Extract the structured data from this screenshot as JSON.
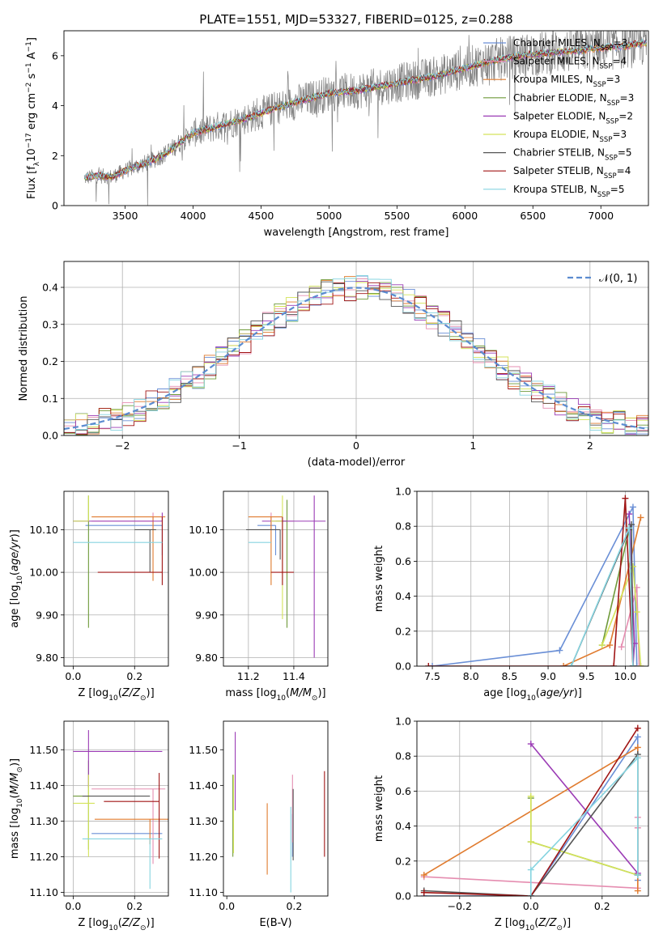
{
  "title": "PLATE=1551, MJD=53327, FIBERID=0125, z=0.288",
  "series_colors": {
    "chabrier_miles": "#6a8fd6",
    "salpeter_miles": "#e58db0",
    "kroupa_miles": "#e07b2e",
    "chabrier_elodie": "#6f9a3a",
    "salpeter_elodie": "#9b3bb5",
    "kroupa_elodie": "#d4e35a",
    "chabrier_stelib": "#555555",
    "salpeter_stelib": "#a01515",
    "kroupa_stelib": "#86d4e0"
  },
  "chart_data": [
    {
      "type": "line",
      "panel": "spectrum",
      "xlabel": "wavelength [Angstrom, rest frame]",
      "ylabel": "Flux [f_λ 10^-17 erg cm^-2 s^-1 A^-1]",
      "xlim": [
        3050,
        7350
      ],
      "ylim": [
        0,
        7
      ],
      "xticks": [
        3500,
        4000,
        4500,
        5000,
        5500,
        6000,
        6500,
        7000
      ],
      "yticks": [
        0,
        2,
        4,
        6
      ],
      "legend_position": "upper-right",
      "legend": [
        {
          "name": "Chabrier MILES, N",
          "sub": "SSP",
          "tail": "=3",
          "color": "#6a8fd6"
        },
        {
          "name": "Salpeter MILES, N",
          "sub": "SSP",
          "tail": "=4",
          "color": "#e58db0"
        },
        {
          "name": "Kroupa MILES, N",
          "sub": "SSP",
          "tail": "=3",
          "color": "#e07b2e"
        },
        {
          "name": "Chabrier ELODIE, N",
          "sub": "SSP",
          "tail": "=3",
          "color": "#6f9a3a"
        },
        {
          "name": "Salpeter ELODIE, N",
          "sub": "SSP",
          "tail": "=2",
          "color": "#9b3bb5"
        },
        {
          "name": "Kroupa ELODIE, N",
          "sub": "SSP",
          "tail": "=3",
          "color": "#d4e35a"
        },
        {
          "name": "Chabrier STELIB, N",
          "sub": "SSP",
          "tail": "=5",
          "color": "#555555"
        },
        {
          "name": "Salpeter STELIB, N",
          "sub": "SSP",
          "tail": "=4",
          "color": "#a01515"
        },
        {
          "name": "Kroupa STELIB, N",
          "sub": "SSP",
          "tail": "=5",
          "color": "#86d4e0"
        }
      ],
      "data_curve": {
        "x": [
          3200,
          3300,
          3400,
          3500,
          3600,
          3700,
          3800,
          3900,
          4000,
          4200,
          4400,
          4600,
          4800,
          5000,
          5200,
          5400,
          5600,
          5800,
          6000,
          6200,
          6400,
          6600,
          6800,
          7000,
          7200,
          7300
        ],
        "y": [
          1.1,
          1.2,
          1.15,
          1.4,
          1.6,
          1.8,
          2.1,
          2.5,
          2.9,
          3.2,
          3.5,
          3.9,
          4.2,
          4.5,
          4.6,
          4.8,
          5.0,
          5.2,
          5.5,
          5.8,
          6.0,
          6.1,
          6.2,
          6.3,
          6.4,
          6.5
        ]
      }
    },
    {
      "type": "line",
      "panel": "residual-histogram",
      "xlabel": "(data-model)/error",
      "ylabel": "Normed distribution",
      "xlim": [
        -2.5,
        2.5
      ],
      "ylim": [
        0,
        0.47
      ],
      "xticks": [
        -2,
        -1,
        0,
        1,
        2
      ],
      "yticks": [
        0.0,
        0.1,
        0.2,
        0.3,
        0.4
      ],
      "grid": true,
      "legend_label": "𝒩(0, 1)",
      "legend_position": "upper-right"
    },
    {
      "type": "scatter",
      "panel": "age-vs-metallicity",
      "xlabel": "Z [log10(Z/Z⊙)]",
      "ylabel": "age  [log10(age/yr)]",
      "xlim": [
        -0.03,
        0.31
      ],
      "ylim": [
        9.78,
        10.19
      ],
      "xticks": [
        0.0,
        0.2
      ],
      "yticks": [
        9.8,
        9.9,
        10.0,
        10.1
      ],
      "grid": true,
      "points": [
        {
          "series": "chabrier_miles",
          "x": 0.29,
          "y": 10.11,
          "xerr": [
            0.25,
            0.0
          ],
          "yerr": [
            0.07,
            0.0
          ]
        },
        {
          "series": "salpeter_miles",
          "x": 0.26,
          "y": 10.12,
          "xerr": [
            0.2,
            0.0
          ],
          "yerr": [
            0.02,
            0.02
          ]
        },
        {
          "series": "kroupa_miles",
          "x": 0.26,
          "y": 10.13,
          "xerr": [
            0.2,
            0.04
          ],
          "yerr": [
            0.15,
            0.0
          ]
        },
        {
          "series": "chabrier_elodie",
          "x": 0.05,
          "y": 10.12,
          "xerr": [
            0.05,
            0.0
          ],
          "yerr": [
            0.25,
            0.06
          ]
        },
        {
          "series": "salpeter_elodie",
          "x": 0.29,
          "y": 10.12,
          "xerr": [
            0.29,
            0.0
          ],
          "yerr": [
            0.0,
            0.02
          ]
        },
        {
          "series": "kroupa_elodie",
          "x": 0.05,
          "y": 10.12,
          "xerr": [
            0.05,
            0.0
          ],
          "yerr": [
            0.0,
            0.06
          ]
        },
        {
          "series": "chabrier_stelib",
          "x": 0.25,
          "y": 10.1,
          "xerr": [
            0.05,
            0.02
          ],
          "yerr": [
            0.1,
            0.0
          ]
        },
        {
          "series": "salpeter_stelib",
          "x": 0.29,
          "y": 10.0,
          "xerr": [
            0.21,
            0.0
          ],
          "yerr": [
            0.03,
            0.13
          ]
        },
        {
          "series": "kroupa_stelib",
          "x": 0.29,
          "y": 10.07,
          "xerr": [
            0.29,
            0.0
          ],
          "yerr": [
            0.0,
            0.0
          ]
        }
      ]
    },
    {
      "type": "scatter",
      "panel": "age-vs-mass",
      "xlabel": "mass [log10(M/M⊙)]",
      "ylabel": "",
      "xlim": [
        11.09,
        11.55
      ],
      "ylim": [
        9.78,
        10.19
      ],
      "xticks": [
        11.2,
        11.4
      ],
      "yticks": [
        9.8,
        9.9,
        10.0,
        10.1
      ],
      "grid": true,
      "points": [
        {
          "series": "chabrier_miles",
          "x": 11.32,
          "y": 10.11,
          "xerr": [
            0.08,
            0.0
          ],
          "yerr": [
            0.07,
            0.0
          ]
        },
        {
          "series": "salpeter_miles",
          "x": 11.3,
          "y": 10.12,
          "xerr": [
            0.0,
            0.1
          ],
          "yerr": [
            0.02,
            0.02
          ]
        },
        {
          "series": "kroupa_miles",
          "x": 11.3,
          "y": 10.13,
          "xerr": [
            0.1,
            0.05
          ],
          "yerr": [
            0.16,
            0.0
          ]
        },
        {
          "series": "chabrier_elodie",
          "x": 11.37,
          "y": 10.12,
          "xerr": [
            0.05,
            0.0
          ],
          "yerr": [
            0.25,
            0.05
          ]
        },
        {
          "series": "salpeter_elodie",
          "x": 11.49,
          "y": 10.12,
          "xerr": [
            0.23,
            0.05
          ],
          "yerr": [
            0.32,
            0.06
          ]
        },
        {
          "series": "kroupa_elodie",
          "x": 11.35,
          "y": 10.12,
          "xerr": [
            0.05,
            0.0
          ],
          "yerr": [
            0.23,
            0.06
          ]
        },
        {
          "series": "chabrier_stelib",
          "x": 11.34,
          "y": 10.1,
          "xerr": [
            0.15,
            0.0
          ],
          "yerr": [
            0.07,
            0.0
          ]
        },
        {
          "series": "salpeter_stelib",
          "x": 11.35,
          "y": 10.0,
          "xerr": [
            0.05,
            0.05
          ],
          "yerr": [
            0.03,
            0.13
          ]
        },
        {
          "series": "kroupa_stelib",
          "x": 11.25,
          "y": 10.07,
          "xerr": [
            0.05,
            0.05
          ],
          "yerr": [
            0.0,
            0.0
          ]
        }
      ]
    },
    {
      "type": "line",
      "panel": "mass-weight-vs-age",
      "xlabel": "age  [log10(age/yr)]",
      "ylabel": "mass weight",
      "xlim": [
        7.3,
        10.3
      ],
      "ylim": [
        0,
        1
      ],
      "xticks": [
        7.5,
        8.0,
        8.5,
        9.0,
        9.5,
        10.0
      ],
      "yticks": [
        0.0,
        0.2,
        0.4,
        0.6,
        0.8,
        1.0
      ],
      "grid": true,
      "series": [
        {
          "name": "chabrier_miles",
          "x": [
            7.5,
            9.15,
            10.1,
            10.15
          ],
          "y": [
            0.0,
            0.09,
            0.91,
            0.0
          ]
        },
        {
          "name": "salpeter_miles",
          "x": [
            9.95,
            10.15,
            10.18,
            10.2
          ],
          "y": [
            0.11,
            0.45,
            0.0,
            0.0
          ]
        },
        {
          "name": "kroupa_miles",
          "x": [
            9.2,
            9.8,
            10.2
          ],
          "y": [
            0.0,
            0.12,
            0.85
          ]
        },
        {
          "name": "chabrier_elodie",
          "x": [
            9.7,
            10.05,
            10.1
          ],
          "y": [
            0.12,
            0.78,
            0.0
          ]
        },
        {
          "name": "salpeter_elodie",
          "x": [
            10.05,
            10.12,
            10.1
          ],
          "y": [
            0.87,
            0.13,
            0.0
          ]
        },
        {
          "name": "kroupa_elodie",
          "x": [
            9.7,
            10.1,
            10.15,
            10.2
          ],
          "y": [
            0.12,
            0.57,
            0.31,
            0.0
          ]
        },
        {
          "name": "chabrier_stelib",
          "x": [
            9.3,
            10.08,
            10.1
          ],
          "y": [
            0.0,
            0.81,
            0.0
          ]
        },
        {
          "name": "salpeter_stelib",
          "x": [
            7.45,
            9.85,
            10.0,
            10.1
          ],
          "y": [
            0.0,
            0.0,
            0.96,
            0.0
          ]
        },
        {
          "name": "kroupa_stelib",
          "x": [
            9.3,
            10.05,
            10.1
          ],
          "y": [
            0.0,
            0.79,
            0.0
          ]
        }
      ]
    },
    {
      "type": "scatter",
      "panel": "mass-vs-metallicity",
      "xlabel": "Z [log10(Z/Z⊙)]",
      "ylabel": "mass [log10(M/M⊙)]",
      "xlim": [
        -0.03,
        0.31
      ],
      "ylim": [
        11.09,
        11.58
      ],
      "xticks": [
        0.0,
        0.2
      ],
      "yticks": [
        11.1,
        11.2,
        11.3,
        11.4,
        11.5
      ],
      "grid": true,
      "points": [
        {
          "series": "chabrier_miles",
          "x": 0.29,
          "y": 11.265,
          "xerr": [
            0.23,
            0.0
          ],
          "yerr": [
            0.0,
            0.0
          ]
        },
        {
          "series": "salpeter_miles",
          "x": 0.26,
          "y": 11.39,
          "xerr": [
            0.2,
            0.04
          ],
          "yerr": [
            0.21,
            0.0
          ]
        },
        {
          "series": "kroupa_miles",
          "x": 0.25,
          "y": 11.305,
          "xerr": [
            0.18,
            0.06
          ],
          "yerr": [
            0.07,
            0.0
          ]
        },
        {
          "series": "chabrier_elodie",
          "x": 0.05,
          "y": 11.37,
          "xerr": [
            0.05,
            0.0
          ],
          "yerr": [
            0.15,
            0.1
          ]
        },
        {
          "series": "salpeter_elodie",
          "x": 0.05,
          "y": 11.495,
          "xerr": [
            0.05,
            0.24
          ],
          "yerr": [
            0.1,
            0.06
          ]
        },
        {
          "series": "kroupa_elodie",
          "x": 0.05,
          "y": 11.35,
          "xerr": [
            0.05,
            0.02
          ],
          "yerr": [
            0.15,
            0.08
          ]
        },
        {
          "series": "chabrier_stelib",
          "x": 0.25,
          "y": 11.37,
          "xerr": [
            0.22,
            0.0
          ],
          "yerr": [
            0.0,
            0.0
          ]
        },
        {
          "series": "salpeter_stelib",
          "x": 0.28,
          "y": 11.355,
          "xerr": [
            0.18,
            0.0
          ],
          "yerr": [
            0.16,
            0.08
          ]
        },
        {
          "series": "kroupa_stelib",
          "x": 0.25,
          "y": 11.25,
          "xerr": [
            0.22,
            0.04
          ],
          "yerr": [
            0.14,
            0.0
          ]
        }
      ]
    },
    {
      "type": "scatter",
      "panel": "mass-vs-extinction",
      "xlabel": "E(B-V)",
      "ylabel": "",
      "xlim": [
        -0.01,
        0.3
      ],
      "ylim": [
        11.09,
        11.58
      ],
      "xticks": [
        0.0,
        0.2
      ],
      "yticks": [
        11.1,
        11.2,
        11.3,
        11.4,
        11.5
      ],
      "points": [
        {
          "series": "chabrier_miles",
          "x": 0.195,
          "y": 11.26,
          "yerr": [
            0.06,
            0.06
          ]
        },
        {
          "series": "salpeter_miles",
          "x": 0.195,
          "y": 11.36,
          "yerr": [
            0.12,
            0.07
          ]
        },
        {
          "series": "kroupa_miles",
          "x": 0.12,
          "y": 11.25,
          "yerr": [
            0.1,
            0.1
          ]
        },
        {
          "series": "chabrier_elodie",
          "x": 0.018,
          "y": 11.35,
          "yerr": [
            0.15,
            0.08
          ]
        },
        {
          "series": "salpeter_elodie",
          "x": 0.025,
          "y": 11.45,
          "yerr": [
            0.12,
            0.1
          ]
        },
        {
          "series": "kroupa_elodie",
          "x": 0.02,
          "y": 11.35,
          "yerr": [
            0.14,
            0.08
          ]
        },
        {
          "series": "chabrier_stelib",
          "x": 0.197,
          "y": 11.3,
          "yerr": [
            0.11,
            0.09
          ]
        },
        {
          "series": "salpeter_stelib",
          "x": 0.29,
          "y": 11.32,
          "yerr": [
            0.12,
            0.12
          ]
        },
        {
          "series": "kroupa_stelib",
          "x": 0.19,
          "y": 11.2,
          "yerr": [
            0.1,
            0.14
          ]
        }
      ]
    },
    {
      "type": "line",
      "panel": "mass-weight-vs-metallicity",
      "xlabel": "Z [log10(Z/Z⊙)]",
      "ylabel": "mass weight",
      "xlim": [
        -0.32,
        0.33
      ],
      "ylim": [
        0,
        1
      ],
      "xticks": [
        -0.2,
        0.0,
        0.2
      ],
      "yticks": [
        0.0,
        0.2,
        0.4,
        0.6,
        0.8,
        1.0
      ],
      "grid": true,
      "series": [
        {
          "name": "chabrier_miles",
          "x": [
            -0.3,
            0.0,
            0.3,
            0.3
          ],
          "y": [
            0.0,
            0.0,
            0.91,
            0.09
          ]
        },
        {
          "name": "salpeter_miles",
          "x": [
            -0.3,
            0.3,
            0.3,
            0.3
          ],
          "y": [
            0.11,
            0.045,
            0.45,
            0.39
          ]
        },
        {
          "name": "kroupa_miles",
          "x": [
            -0.3,
            0.3,
            0.3
          ],
          "y": [
            0.12,
            0.85,
            0.03
          ]
        },
        {
          "name": "chabrier_elodie",
          "x": [
            0.0,
            0.0,
            0.3
          ],
          "y": [
            0.56,
            0.31,
            0.12
          ]
        },
        {
          "name": "salpeter_elodie",
          "x": [
            0.0,
            0.3
          ],
          "y": [
            0.87,
            0.13
          ]
        },
        {
          "name": "kroupa_elodie",
          "x": [
            0.0,
            0.0,
            0.3
          ],
          "y": [
            0.57,
            0.31,
            0.12
          ]
        },
        {
          "name": "chabrier_stelib",
          "x": [
            -0.3,
            0.0,
            0.3,
            0.3
          ],
          "y": [
            0.03,
            0.0,
            0.81,
            0.12
          ]
        },
        {
          "name": "salpeter_stelib",
          "x": [
            -0.3,
            0.0,
            0.3
          ],
          "y": [
            0.02,
            0.0,
            0.96
          ]
        },
        {
          "name": "kroupa_stelib",
          "x": [
            0.0,
            0.0,
            0.3,
            0.3
          ],
          "y": [
            0.0,
            0.15,
            0.79,
            0.12
          ]
        }
      ]
    }
  ]
}
